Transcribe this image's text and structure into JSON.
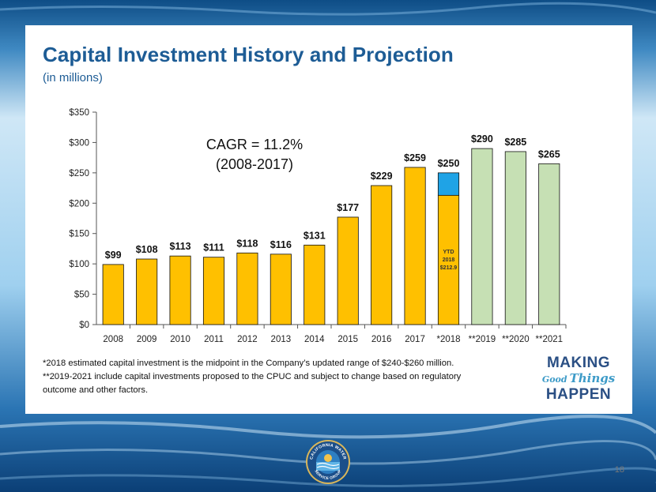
{
  "slide": {
    "title": "Capital Investment History and Projection",
    "subtitle": "(in millions)",
    "page_number": "18",
    "footnotes": [
      "*2018 estimated capital investment is the midpoint in the Company’s updated range of $240-$260 million.",
      "**2019-2021 include capital investments proposed to the CPUC and subject to change based on regulatory",
      "outcome  and other factors."
    ],
    "brand": {
      "line1": "MAKING",
      "line2a": "Good",
      "line2b": "Things",
      "line3": "HAPPEN"
    },
    "logo": {
      "top_text": "CALIFORNIA WATER",
      "bottom_text": "SERVICE GROUP"
    }
  },
  "chart_data": {
    "type": "bar",
    "categories": [
      "2008",
      "2009",
      "2010",
      "2011",
      "2012",
      "2013",
      "2014",
      "2015",
      "2016",
      "2017",
      "*2018",
      "**2019",
      "**2020",
      "**2021"
    ],
    "values": [
      99,
      108,
      113,
      111,
      118,
      116,
      131,
      177,
      229,
      259,
      250,
      290,
      285,
      265
    ],
    "value_labels": [
      "$99",
      "$108",
      "$113",
      "$111",
      "$118",
      "$116",
      "$131",
      "$177",
      "$229",
      "$259",
      "$250",
      "$290",
      "$285",
      "$265"
    ],
    "ytd_2018": {
      "value": 212.9,
      "label_lines": [
        "YTD",
        "2018",
        "$212.9"
      ]
    },
    "ylim": [
      0,
      350
    ],
    "yticks": [
      0,
      50,
      100,
      150,
      200,
      250,
      300,
      350
    ],
    "ytick_labels": [
      "$0",
      "$50",
      "$100",
      "$150",
      "$200",
      "$250",
      "$300",
      "$350"
    ],
    "annotation": [
      "CAGR = 11.2%",
      "(2008-2017)"
    ],
    "colors": {
      "actual": "#ffc000",
      "ytd_remainder": "#1fa3e6",
      "projected": "#c6e0b4",
      "bar_outline": "#111111",
      "axis": "#555555"
    },
    "grid": false,
    "legend": "none"
  }
}
